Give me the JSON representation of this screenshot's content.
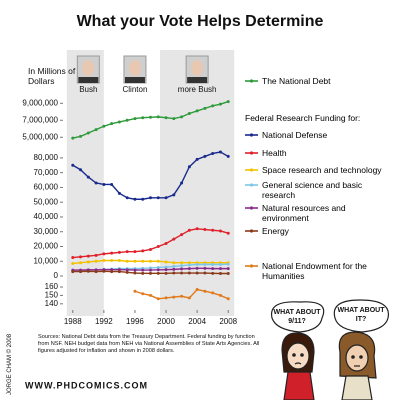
{
  "title": "What your Vote Helps Determine",
  "y_label": "In Millions of Dollars",
  "eras": [
    {
      "label": "Bush",
      "start": 1988,
      "end": 1992
    },
    {
      "label": "Clinton",
      "start": 1992,
      "end": 2000
    },
    {
      "label": "more Bush",
      "start": 2000,
      "end": 2008
    }
  ],
  "chart_data": [
    {
      "type": "line",
      "x": [
        1988,
        1989,
        1990,
        1991,
        1992,
        1993,
        1994,
        1995,
        1996,
        1997,
        1998,
        1999,
        2000,
        2001,
        2002,
        2003,
        2004,
        2005,
        2006,
        2007,
        2008
      ],
      "xlim": [
        1987,
        2009
      ],
      "ylim": [
        3500000,
        10800000
      ],
      "yticks": [
        {
          "value": 5000000,
          "label": "5,000,000"
        },
        {
          "value": 7000000,
          "label": "7,000,000"
        },
        {
          "value": 9000000,
          "label": "9,000,000"
        }
      ],
      "series": [
        {
          "name": "The National Debt",
          "color": "#2e9a3a",
          "values": [
            4900000,
            5100000,
            5500000,
            5900000,
            6300000,
            6600000,
            6800000,
            7000000,
            7200000,
            7300000,
            7350000,
            7400000,
            7300000,
            7200000,
            7400000,
            7800000,
            8100000,
            8400000,
            8700000,
            8900000,
            9200000
          ]
        }
      ]
    },
    {
      "type": "line",
      "legend_title": "Federal Research Funding for:",
      "x": [
        1988,
        1989,
        1990,
        1991,
        1992,
        1993,
        1994,
        1995,
        1996,
        1997,
        1998,
        1999,
        2000,
        2001,
        2002,
        2003,
        2004,
        2005,
        2006,
        2007,
        2008
      ],
      "xlim": [
        1987,
        2009
      ],
      "ylim": [
        -2700,
        84000
      ],
      "yticks": [
        0,
        {
          "value": 10000,
          "label": "10,000"
        },
        {
          "value": 20000,
          "label": "20,000"
        },
        {
          "value": 30000,
          "label": "30,000"
        },
        {
          "value": 40000,
          "label": "40,000"
        },
        {
          "value": 50000,
          "label": "50,000"
        },
        {
          "value": 60000,
          "label": "60,000"
        },
        {
          "value": 70000,
          "label": "70,000"
        },
        {
          "value": 80000,
          "label": "80,000"
        }
      ],
      "series": [
        {
          "name": "National Defense",
          "color": "#1a2a8c",
          "values": [
            75000,
            72000,
            67000,
            63000,
            62000,
            62000,
            56000,
            53000,
            52000,
            52000,
            53000,
            53000,
            53000,
            55000,
            63000,
            74000,
            79000,
            81000,
            83000,
            84000,
            81000
          ]
        },
        {
          "name": "Health",
          "color": "#e0202a",
          "values": [
            12500,
            13000,
            13500,
            14000,
            15000,
            15500,
            16000,
            16500,
            16500,
            17000,
            18000,
            20000,
            22000,
            25000,
            28000,
            31000,
            32000,
            31500,
            31000,
            30500,
            29000
          ]
        },
        {
          "name": "Space research and technology",
          "color": "#f2c200",
          "values": [
            8500,
            9000,
            9500,
            10000,
            10500,
            10500,
            10500,
            10000,
            10000,
            10000,
            10000,
            10000,
            9500,
            9000,
            9000,
            9000,
            9000,
            9000,
            9000,
            9000,
            9000
          ]
        },
        {
          "name": "General science and basic research",
          "color": "#7cc7e8",
          "values": [
            3500,
            3700,
            4000,
            4200,
            4500,
            4700,
            5000,
            5000,
            5000,
            5200,
            5500,
            5800,
            6000,
            6500,
            7000,
            7500,
            7800,
            7800,
            7800,
            7800,
            8000
          ]
        },
        {
          "name": "Natural resources and environment",
          "color": "#8a2a8a",
          "values": [
            4000,
            4000,
            4200,
            4200,
            4300,
            4300,
            4300,
            4200,
            4000,
            4000,
            4000,
            4200,
            4300,
            4500,
            4800,
            5000,
            5200,
            5200,
            5000,
            5000,
            5000
          ]
        },
        {
          "name": "Energy",
          "color": "#8b3a1a",
          "values": [
            3000,
            3000,
            3200,
            3000,
            3200,
            3000,
            3000,
            2500,
            2000,
            1800,
            1800,
            1800,
            1800,
            2000,
            2000,
            2000,
            2000,
            2000,
            1800,
            1700,
            1700
          ]
        }
      ]
    },
    {
      "type": "line",
      "x": [
        1988,
        1989,
        1990,
        1991,
        1992,
        1993,
        1994,
        1995,
        1996,
        1997,
        1998,
        1999,
        2000,
        2001,
        2002,
        2003,
        2004,
        2005,
        2006,
        2007,
        2008
      ],
      "xlim": [
        1987,
        2009
      ],
      "xticks": [
        1988,
        1992,
        1996,
        2000,
        2004,
        2008
      ],
      "ylim": [
        135,
        166
      ],
      "yticks": [
        140,
        150,
        160
      ],
      "series": [
        {
          "name": "National Endowment for the Humanities",
          "color": "#e07a1a",
          "values": [
            null,
            null,
            null,
            null,
            null,
            null,
            null,
            null,
            155,
            152,
            150,
            146,
            147,
            148,
            149,
            147,
            157,
            155,
            153,
            150,
            146
          ]
        }
      ]
    }
  ],
  "source_note": "Sources: National Debt data from the Treasury Department. Federal funding by function from NSF. NEH budget data from NEH via National Assemblies of State Arts Agencies. All figures adjusted for inflation and shown in 2008 dollars.",
  "copyright": "JORGE CHAM © 2008",
  "website": "WWW.PHDCOMICS.COM",
  "speech": [
    [
      "WHAT ABOUT",
      "9/11?"
    ],
    [
      "WHAT ABOUT",
      "IT?"
    ]
  ]
}
